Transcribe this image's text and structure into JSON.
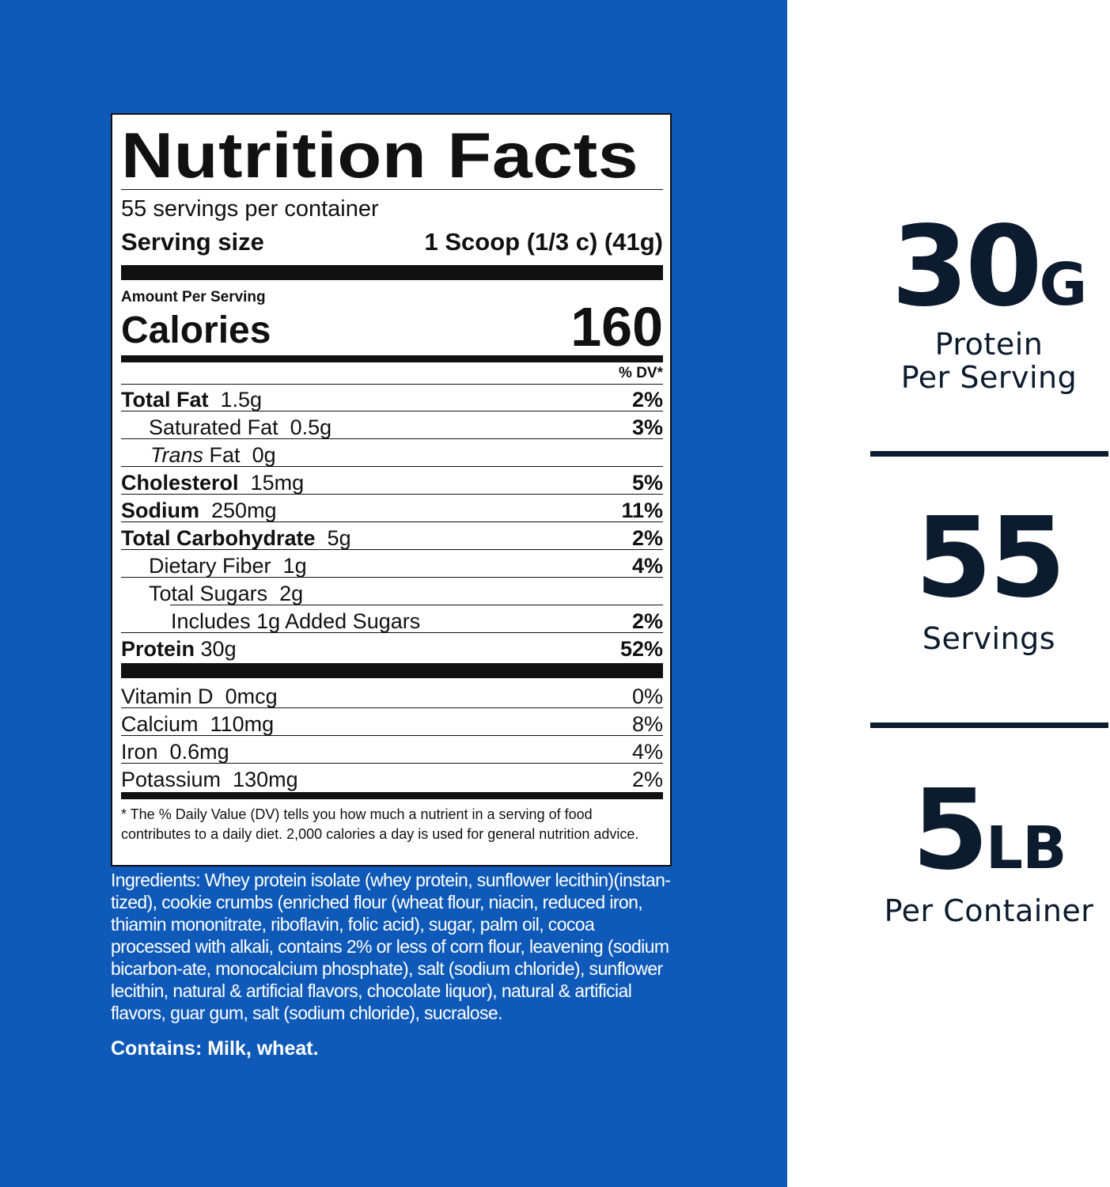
{
  "label": {
    "title": "Nutrition Facts",
    "servings_per_container": "55 servings per container",
    "serving_size_label": "Serving size",
    "serving_size_value": "1 Scoop (1/3 c) (41g)",
    "amount_per_serving": "Amount Per Serving",
    "calories_label": "Calories",
    "calories_value": "160",
    "dv_header": "% DV*",
    "nutrients": [
      {
        "name": "Total Fat",
        "amount": "1.5g",
        "dv": "2%"
      },
      {
        "name": "Saturated Fat",
        "amount": "0.5g",
        "dv": "3%"
      },
      {
        "name_italic": "Trans",
        "name": "Fat",
        "amount": "0g",
        "dv": ""
      },
      {
        "name": "Cholesterol",
        "amount": "15mg",
        "dv": "5%"
      },
      {
        "name": "Sodium",
        "amount": "250mg",
        "dv": "11%"
      },
      {
        "name": "Total Carbohydrate",
        "amount": "5g",
        "dv": "2%"
      },
      {
        "name": "Dietary Fiber",
        "amount": "1g",
        "dv": "4%"
      },
      {
        "name": "Total Sugars",
        "amount": "2g",
        "dv": ""
      },
      {
        "name": "Includes 1g Added Sugars",
        "amount": "",
        "dv": "2%"
      },
      {
        "name": "Protein",
        "amount": "30g",
        "dv": "52%"
      }
    ],
    "vitamins": [
      {
        "name": "Vitamin D",
        "amount": "0mcg",
        "dv": "0%"
      },
      {
        "name": "Calcium",
        "amount": "110mg",
        "dv": "8%"
      },
      {
        "name": "Iron",
        "amount": "0.6mg",
        "dv": "4%"
      },
      {
        "name": "Potassium",
        "amount": "130mg",
        "dv": "2%"
      }
    ],
    "footnote": "* The % Daily Value (DV) tells you how much a nutrient in a serving of food contributes to a daily diet. 2,000 calories a day is used for general nutrition advice."
  },
  "ingredients": "Ingredients: Whey protein isolate (whey protein, sunflower lecithin)(instan-tized), cookie crumbs (enriched flour (wheat flour, niacin, reduced iron, thiamin mononitrate, riboflavin, folic acid), sugar, palm oil, cocoa processed with alkali, contains 2% or less of corn flour, leavening (sodium bicarbon-ate, monocalcium phosphate), salt (sodium chloride), sunflower lecithin, natural & artificial flavors, chocolate liquor), natural & artificial flavors, guar gum, salt (sodium chloride), sucralose.",
  "contains": "Contains: Milk, wheat.",
  "stats": [
    {
      "number": "30",
      "unit": "G",
      "caption_1": "Protein",
      "caption_2": "Per Serving"
    },
    {
      "number": "55",
      "unit": "",
      "caption_1": "Servings",
      "caption_2": ""
    },
    {
      "number": "5",
      "unit": "LB",
      "caption_1": "Per Container",
      "caption_2": ""
    }
  ],
  "colors": {
    "blue_panel": "#0f5ab8",
    "stat_text": "#0d1b2e",
    "label_ink": "#111111"
  }
}
